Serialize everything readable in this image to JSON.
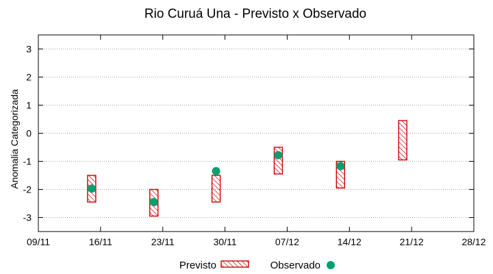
{
  "chart_data": {
    "type": "range-bar",
    "title": "Rio Curuá Una - Previsto x Observado",
    "ylabel": "Anomalia Categorizada",
    "xlabel": "",
    "x_ticks": [
      "09/11",
      "16/11",
      "23/11",
      "30/11",
      "07/12",
      "14/12",
      "21/12",
      "28/12"
    ],
    "y_ticks": [
      "3",
      "2",
      "1",
      "0",
      "-1",
      "-2",
      "-3"
    ],
    "y_tick_values": [
      3,
      2,
      1,
      0,
      -1,
      -2,
      -3
    ],
    "ylim": [
      -3.5,
      3.5
    ],
    "grid": "horizontal dotted",
    "legend_position": "bottom",
    "series": [
      {
        "name": "Previsto",
        "kind": "range-bar",
        "color": "#cc0000",
        "points": [
          {
            "date": "15/11",
            "low": -2.45,
            "high": -1.5
          },
          {
            "date": "22/11",
            "low": -2.95,
            "high": -2.0
          },
          {
            "date": "29/11",
            "low": -2.45,
            "high": -1.5
          },
          {
            "date": "06/12",
            "low": -1.45,
            "high": -0.5
          },
          {
            "date": "13/12",
            "low": -1.95,
            "high": -1.0
          },
          {
            "date": "20/12",
            "low": -0.95,
            "high": 0.45
          }
        ]
      },
      {
        "name": "Observado",
        "kind": "point",
        "color": "#00a070",
        "points": [
          {
            "date": "15/11",
            "value": -1.97
          },
          {
            "date": "22/11",
            "value": -2.45
          },
          {
            "date": "29/11",
            "value": -1.35
          },
          {
            "date": "06/12",
            "value": -0.78
          },
          {
            "date": "13/12",
            "value": -1.17
          }
        ]
      }
    ]
  }
}
